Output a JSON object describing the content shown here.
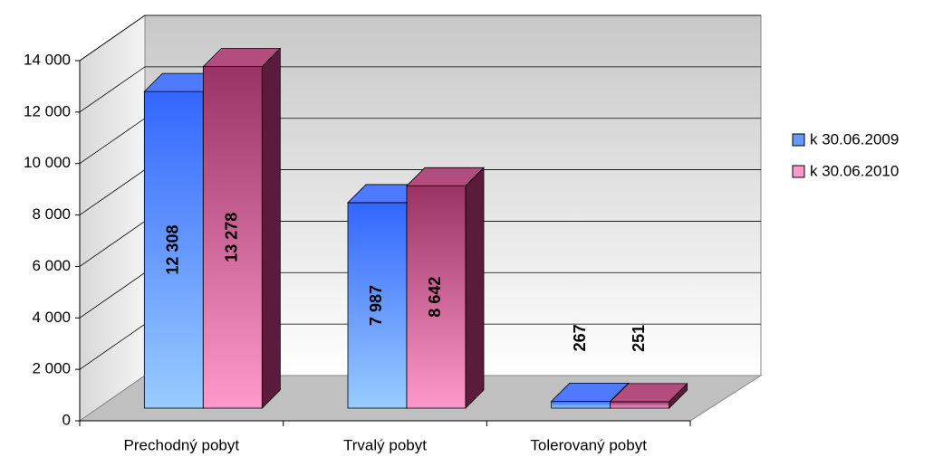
{
  "chart_data": {
    "type": "bar3d",
    "categories": [
      "Prechodný pobyt",
      "Trvalý pobyt",
      "Tolerovaný pobyt"
    ],
    "series": [
      {
        "name": "k 30.06.2009",
        "color": "#3366ff",
        "values": [
          12308,
          7987,
          267
        ],
        "value_labels": [
          "12 308",
          "7 987",
          "267"
        ]
      },
      {
        "name": "k 30.06.2010",
        "color": "#993366",
        "values": [
          13278,
          8642,
          251
        ],
        "value_labels": [
          "13 278",
          "8 642",
          "251"
        ]
      }
    ],
    "ylim": [
      0,
      14000
    ],
    "yticks": [
      {
        "value": 0,
        "label": "0"
      },
      {
        "value": 2000,
        "label": "2 000"
      },
      {
        "value": 4000,
        "label": "4 000"
      },
      {
        "value": 6000,
        "label": "6 000"
      },
      {
        "value": 8000,
        "label": "8 000"
      },
      {
        "value": 10000,
        "label": "10 000"
      },
      {
        "value": 12000,
        "label": "12 000"
      },
      {
        "value": 14000,
        "label": "14 000"
      }
    ],
    "grid": true,
    "legend": "right"
  }
}
